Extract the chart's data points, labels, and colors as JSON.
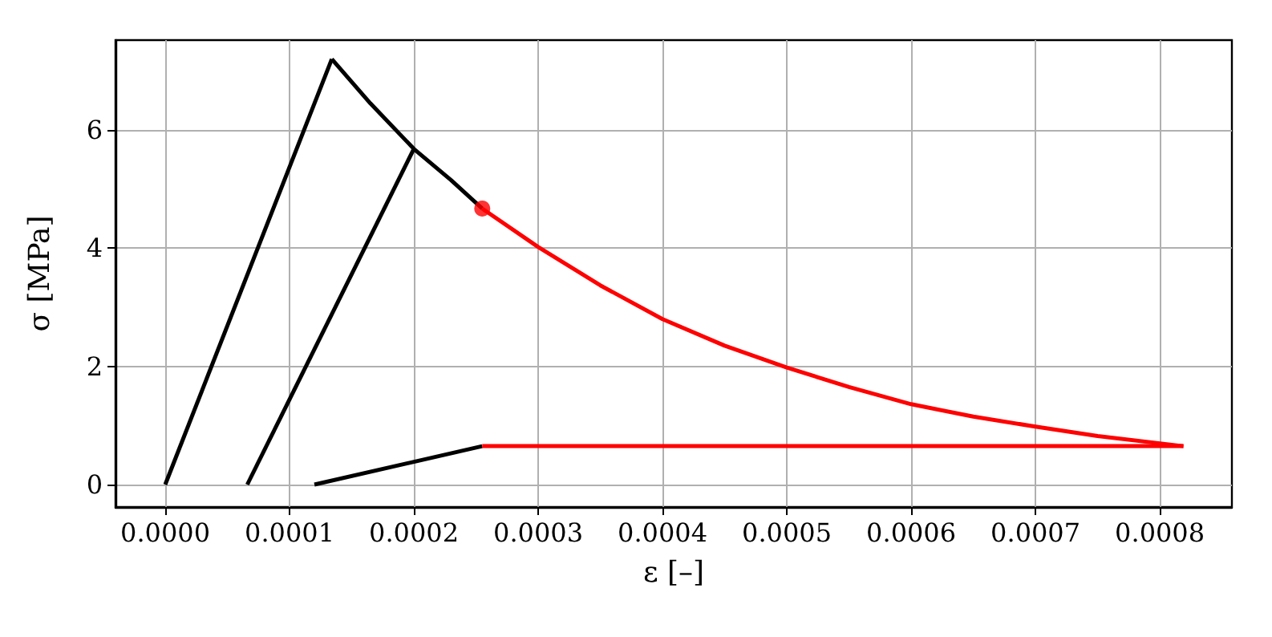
{
  "chart_data": {
    "type": "line",
    "xlabel": "ε [–]",
    "ylabel": "σ [MPa]",
    "xlim": [
      -4e-05,
      0.000858
    ],
    "xticks": [
      {
        "value": 0,
        "label": "0.0000"
      },
      {
        "value": 0.0001,
        "label": "0.0001"
      },
      {
        "value": 0.0002,
        "label": "0.0002"
      },
      {
        "value": 0.0003,
        "label": "0.0003"
      },
      {
        "value": 0.0004,
        "label": "0.0004"
      },
      {
        "value": 0.0005,
        "label": "0.0005"
      },
      {
        "value": 0.0006,
        "label": "0.0006"
      },
      {
        "value": 0.0007,
        "label": "0.0007"
      },
      {
        "value": 0.0008,
        "label": "0.0008"
      }
    ],
    "ylim": [
      -0.38,
      7.52
    ],
    "yticks": [
      0,
      2,
      4,
      6
    ],
    "grid": true,
    "marker": "none",
    "line_style": "solid",
    "series": [
      {
        "color": "#000000",
        "x": [
          0,
          0.000134
        ],
        "values": [
          0,
          7.2
        ]
      },
      {
        "color": "#000000",
        "x": [
          0.000134,
          0.000165,
          0.0002,
          0.00023,
          0.000255
        ],
        "values": [
          7.2,
          6.45,
          5.68,
          5.15,
          4.67
        ]
      },
      {
        "color": "#000000",
        "x": [
          6.6e-05,
          0.0002
        ],
        "values": [
          0,
          5.68
        ]
      },
      {
        "color": "#000000",
        "x": [
          0.00012,
          0.000255
        ],
        "values": [
          0,
          0.65
        ]
      },
      {
        "color": "#ff0000",
        "x": [
          0.000255,
          0.0003,
          0.00035,
          0.0004,
          0.00045,
          0.0005,
          0.00055,
          0.0006,
          0.00065,
          0.0007,
          0.00075,
          0.000819
        ],
        "values": [
          4.67,
          4.02,
          3.37,
          2.8,
          2.35,
          1.98,
          1.65,
          1.36,
          1.15,
          0.98,
          0.82,
          0.65
        ]
      },
      {
        "color": "#ff0000",
        "x": [
          0.000255,
          0.000819
        ],
        "values": [
          0.65,
          0.65
        ]
      },
      {
        "type": "scatter",
        "marker": "circle",
        "color": "#ff0000",
        "x": [
          0.000255
        ],
        "values": [
          4.67
        ]
      }
    ]
  }
}
